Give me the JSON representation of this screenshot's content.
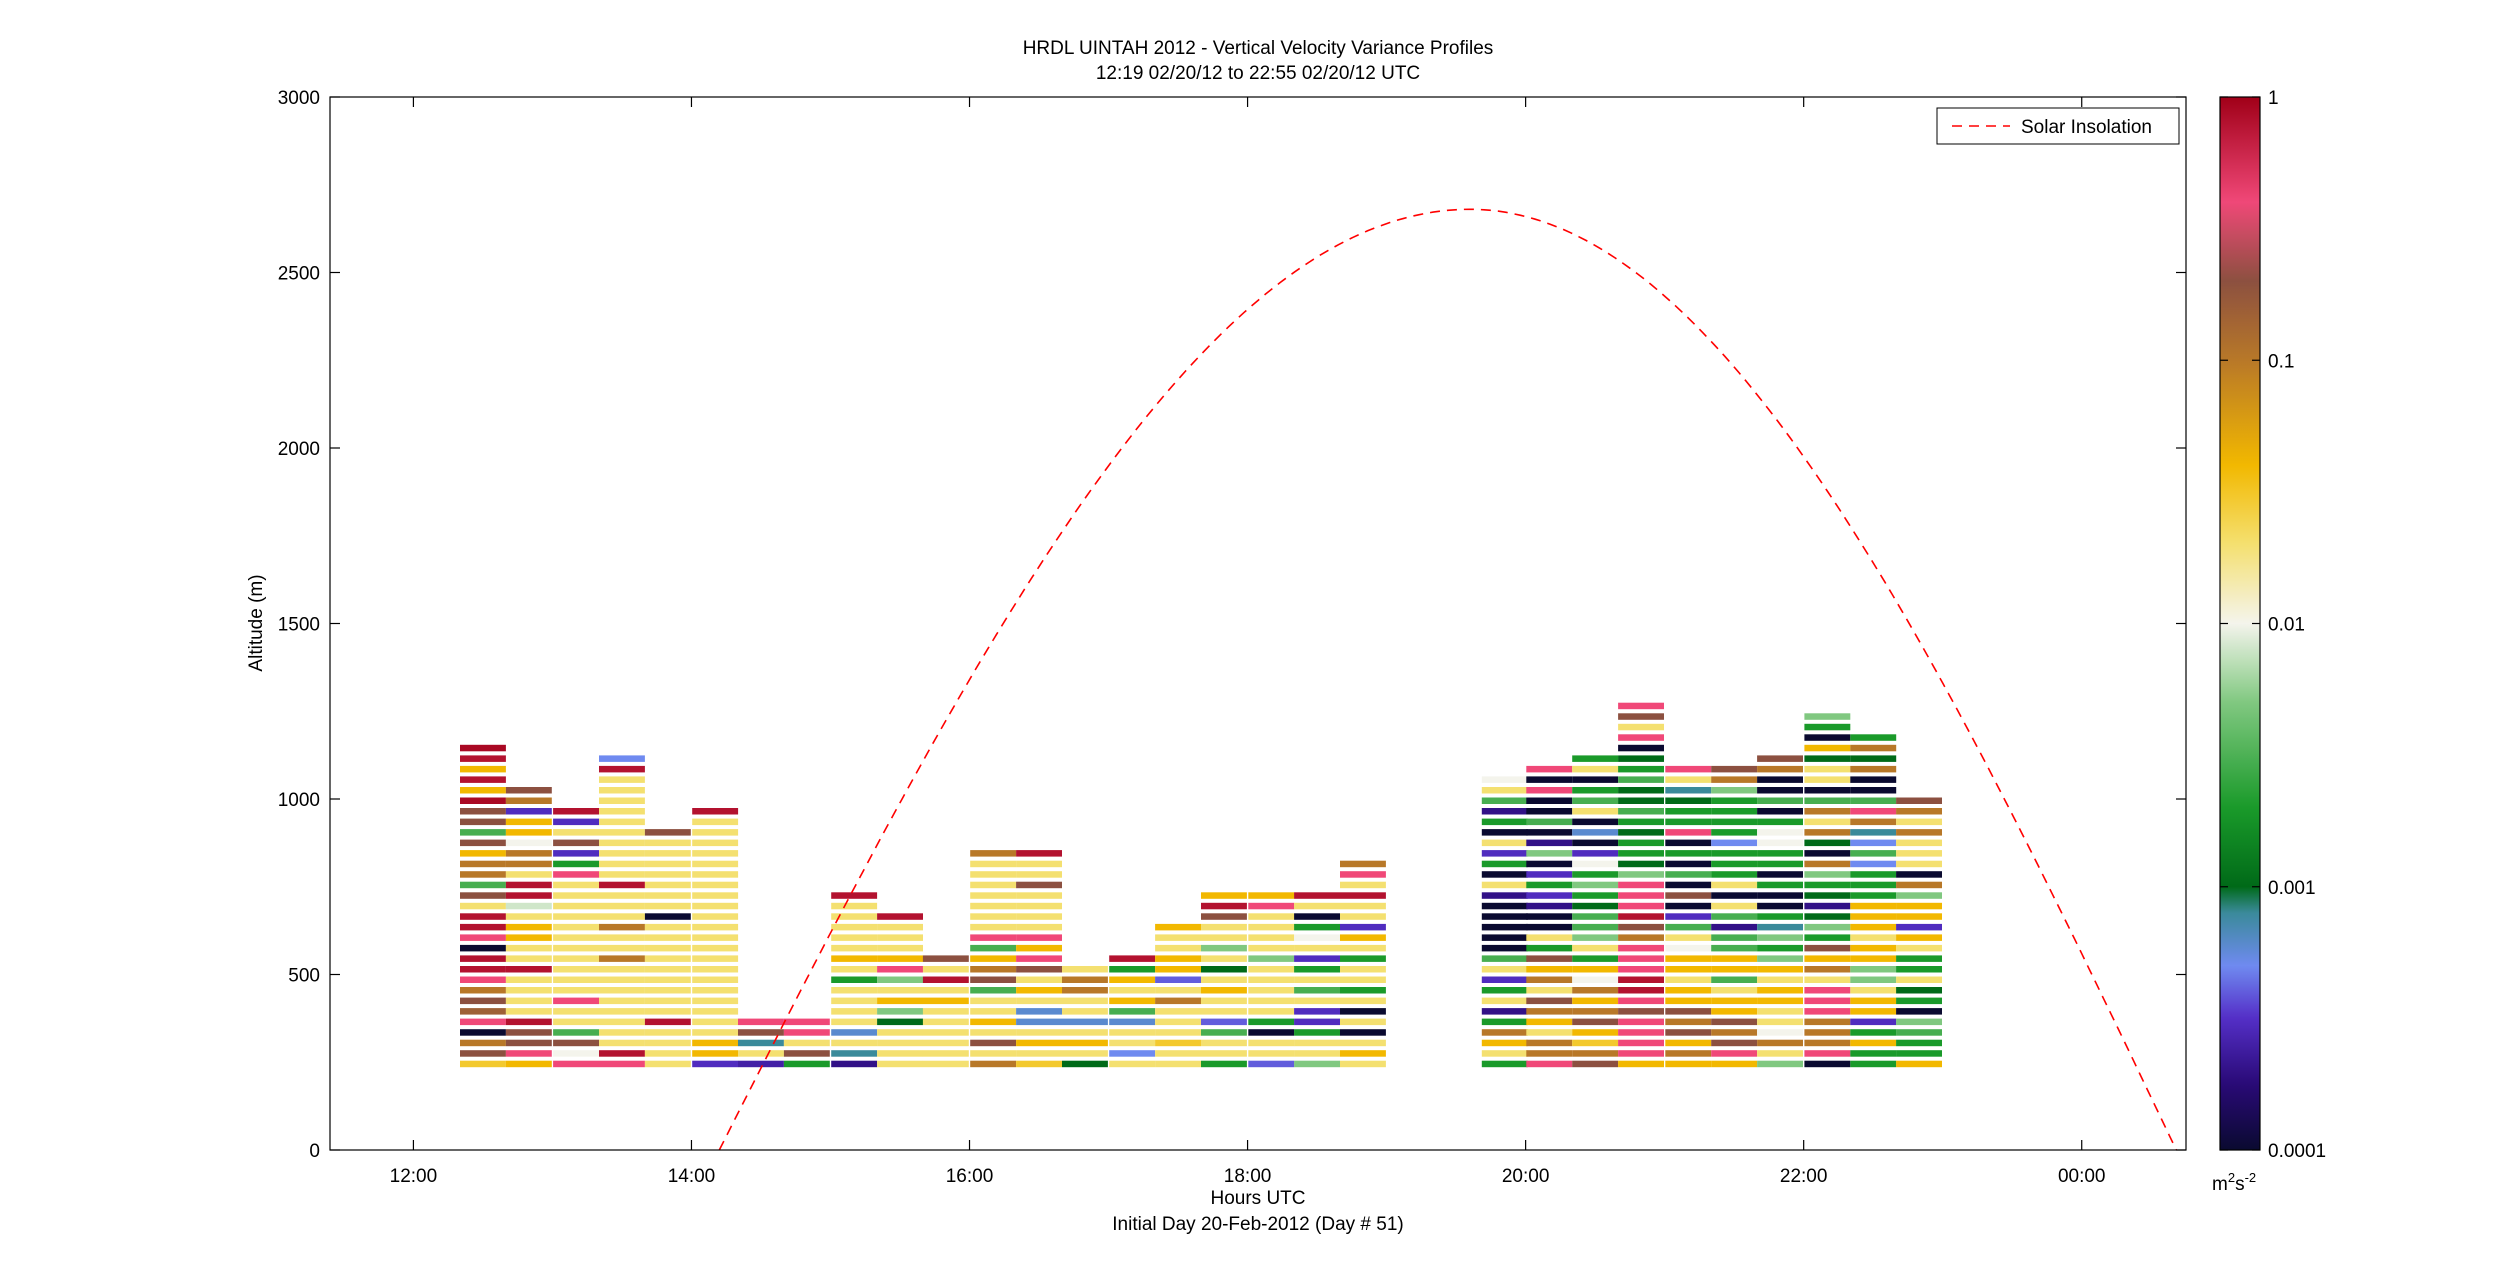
{
  "chart_data": {
    "type": "heatmap",
    "title": "HRDL UINTAH 2012 - Vertical Velocity Variance Profiles",
    "subtitle": "12:19 02/20/12 to 22:55 02/20/12  UTC",
    "xlabel": "Hours UTC",
    "xlabel_secondary": "Initial Day 20-Feb-2012 (Day # 51)",
    "ylabel": "Altitude (m)",
    "xlim_hours": [
      11.4,
      24.75
    ],
    "ylim": [
      0,
      3000
    ],
    "x_ticks": [
      {
        "value": 12,
        "label": "12:00"
      },
      {
        "value": 14,
        "label": "14:00"
      },
      {
        "value": 16,
        "label": "16:00"
      },
      {
        "value": 18,
        "label": "18:00"
      },
      {
        "value": 20,
        "label": "20:00"
      },
      {
        "value": 22,
        "label": "22:00"
      },
      {
        "value": 24,
        "label": "00:00"
      }
    ],
    "y_ticks": [
      {
        "value": 0,
        "label": "0"
      },
      {
        "value": 500,
        "label": "500"
      },
      {
        "value": 1000,
        "label": "1000"
      },
      {
        "value": 1500,
        "label": "1500"
      },
      {
        "value": 2000,
        "label": "2000"
      },
      {
        "value": 2500,
        "label": "2500"
      },
      {
        "value": 3000,
        "label": "3000"
      }
    ],
    "legend": {
      "placement": "top-right",
      "entries": [
        {
          "label": "Solar Insolation",
          "color": "#ff0000",
          "style": "dashed"
        }
      ]
    },
    "colorbar": {
      "scale": "log",
      "range": [
        0.0001,
        1
      ],
      "unit_base": "m",
      "unit_exp1": "2",
      "unit_mid": "s",
      "unit_exp2": "-2",
      "ticks": [
        {
          "value": 1,
          "label": "1"
        },
        {
          "value": 0.1,
          "label": "0.1"
        },
        {
          "value": 0.01,
          "label": "0.01"
        },
        {
          "value": 0.001,
          "label": "0.001"
        },
        {
          "value": 0.0001,
          "label": "0.0001"
        }
      ],
      "stops": [
        {
          "value": 0.0001,
          "color": "#0a0a30"
        },
        {
          "value": 0.00018,
          "color": "#2a0a78"
        },
        {
          "value": 0.00032,
          "color": "#5530c8"
        },
        {
          "value": 0.0005,
          "color": "#6f8af0"
        },
        {
          "value": 0.0008,
          "color": "#3a8a9a"
        },
        {
          "value": 0.001,
          "color": "#006a18"
        },
        {
          "value": 0.002,
          "color": "#1a9a2a"
        },
        {
          "value": 0.005,
          "color": "#80c880"
        },
        {
          "value": 0.01,
          "color": "#f4f4ec"
        },
        {
          "value": 0.02,
          "color": "#f4e070"
        },
        {
          "value": 0.04,
          "color": "#f2b800"
        },
        {
          "value": 0.1,
          "color": "#b87828"
        },
        {
          "value": 0.2,
          "color": "#8c5040"
        },
        {
          "value": 0.4,
          "color": "#f04878"
        },
        {
          "value": 1,
          "color": "#a00018"
        }
      ]
    },
    "solar_insolation": {
      "start_hour": 14.2,
      "peak_hour": 19.6,
      "end_hour": 24.68,
      "peak_altitude": 2680
    },
    "range_gate_m": 30,
    "profiles": [
      {
        "hour": 12.5,
        "start_alt": 245,
        "values": [
          0.03,
          0.2,
          0.1,
          0.0001,
          0.4,
          0.15,
          0.2,
          0.1,
          0.4,
          0.8,
          0.8,
          0.0001,
          0.4,
          0.8,
          0.8,
          0.02,
          0.2,
          0.003,
          0.1,
          0.1,
          0.04,
          0.2,
          0.003,
          0.2,
          0.2,
          0.9,
          0.04,
          0.8,
          0.04,
          0.8,
          0.9
        ]
      },
      {
        "hour": 12.83,
        "start_alt": 245,
        "values": [
          0.04,
          0.4,
          0.2,
          0.2,
          0.8,
          0.02,
          0.02,
          0.02,
          0.02,
          0.8,
          0.02,
          0.02,
          0.04,
          0.04,
          0.02,
          0.008,
          0.8,
          0.8,
          0.02,
          0.1,
          0.1,
          0.01,
          0.04,
          0.04,
          0.0003,
          0.1,
          0.2
        ]
      },
      {
        "hour": 13.17,
        "start_alt": 245,
        "values": [
          0.4,
          0.01,
          0.2,
          0.003,
          0.02,
          0.02,
          0.4,
          0.02,
          0.02,
          0.02,
          0.02,
          0.02,
          0.02,
          0.02,
          0.02,
          0.02,
          0.02,
          0.02,
          0.4,
          0.002,
          0.0003,
          0.2,
          0.02,
          0.0003,
          0.8
        ]
      },
      {
        "hour": 13.5,
        "start_alt": 245,
        "values": [
          0.4,
          0.8,
          0.02,
          0.02,
          0.02,
          0.02,
          0.02,
          0.02,
          0.02,
          0.02,
          0.1,
          0.02,
          0.02,
          0.1,
          0.02,
          0.02,
          0.02,
          0.8,
          0.02,
          0.02,
          0.02,
          0.02,
          0.02,
          0.02,
          0.02,
          0.02,
          0.02,
          0.02,
          0.8,
          0.0005
        ]
      },
      {
        "hour": 13.83,
        "start_alt": 245,
        "values": [
          0.02,
          0.02,
          0.02,
          0.02,
          0.8,
          0.02,
          0.02,
          0.02,
          0.02,
          0.02,
          0.02,
          0.02,
          0.02,
          0.02,
          0.0001,
          0.02,
          0.02,
          0.02,
          0.02,
          0.02,
          0.02,
          0.02,
          0.2
        ]
      },
      {
        "hour": 14.17,
        "start_alt": 245,
        "values": [
          0.0003,
          0.04,
          0.04,
          0.02,
          0.02,
          0.02,
          0.02,
          0.02,
          0.02,
          0.02,
          0.02,
          0.02,
          0.02,
          0.02,
          0.02,
          0.02,
          0.02,
          0.02,
          0.02,
          0.02,
          0.02,
          0.02,
          0.02,
          0.02,
          0.8
        ]
      },
      {
        "hour": 14.5,
        "start_alt": 245,
        "values": [
          0.00025,
          0.02,
          0.0008,
          0.2,
          0.4
        ]
      },
      {
        "hour": 14.83,
        "start_alt": 245,
        "values": [
          0.002,
          0.2,
          0.02,
          0.4,
          0.4
        ]
      },
      {
        "hour": 15.17,
        "start_alt": 245,
        "values": [
          0.0002,
          0.0008,
          0.02,
          0.0006,
          0.02,
          0.02,
          0.02,
          0.02,
          0.002,
          0.02,
          0.04,
          0.02,
          0.02,
          0.02,
          0.02,
          0.02,
          0.8
        ]
      },
      {
        "hour": 15.5,
        "start_alt": 245,
        "values": [
          0.02,
          0.02,
          0.02,
          0.02,
          0.001,
          0.005,
          0.04,
          0.02,
          0.005,
          0.4,
          0.04,
          0.02,
          0.02,
          0.02,
          0.8
        ]
      },
      {
        "hour": 15.83,
        "start_alt": 245,
        "values": [
          0.02,
          0.02,
          0.02,
          0.02,
          0.02,
          0.02,
          0.04,
          0.02,
          0.8,
          0.02,
          0.2
        ]
      },
      {
        "hour": 16.17,
        "start_alt": 245,
        "values": [
          0.1,
          0.02,
          0.2,
          0.02,
          0.04,
          0.02,
          0.02,
          0.003,
          0.2,
          0.1,
          0.04,
          0.003,
          0.4,
          0.02,
          0.02,
          0.02,
          0.02,
          0.02,
          0.02,
          0.02,
          0.1
        ]
      },
      {
        "hour": 16.5,
        "start_alt": 245,
        "values": [
          0.03,
          0.02,
          0.04,
          0.02,
          0.0006,
          0.0006,
          0.02,
          0.04,
          0.02,
          0.2,
          0.4,
          0.04,
          0.4,
          0.02,
          0.02,
          0.02,
          0.02,
          0.2,
          0.02,
          0.02,
          0.8
        ]
      },
      {
        "hour": 16.83,
        "start_alt": 245,
        "values": [
          0.001,
          0.02,
          0.04,
          0.02,
          0.0006,
          0.02,
          0.02,
          0.1,
          0.1,
          0.02
        ]
      },
      {
        "hour": 17.17,
        "start_alt": 245,
        "values": [
          0.02,
          0.0005,
          0.02,
          0.02,
          0.0006,
          0.003,
          0.04,
          0.02,
          0.04,
          0.002,
          0.8
        ]
      },
      {
        "hour": 17.5,
        "start_alt": 245,
        "values": [
          0.02,
          0.02,
          0.03,
          0.02,
          0.02,
          0.02,
          0.1,
          0.02,
          0.0004,
          0.04,
          0.04,
          0.02,
          0.02,
          0.04
        ]
      },
      {
        "hour": 17.83,
        "start_alt": 245,
        "values": [
          0.002,
          0.02,
          0.02,
          0.003,
          0.0004,
          0.02,
          0.02,
          0.04,
          0.02,
          0.001,
          0.02,
          0.005,
          0.02,
          0.02,
          0.2,
          0.8,
          0.04
        ]
      },
      {
        "hour": 18.17,
        "start_alt": 245,
        "values": [
          0.0004,
          0.02,
          0.02,
          0.0001,
          0.002,
          0.02,
          0.02,
          0.02,
          0.02,
          0.02,
          0.005,
          0.02,
          0.02,
          0.02,
          0.02,
          0.4,
          0.04
        ]
      },
      {
        "hour": 18.5,
        "start_alt": 245,
        "values": [
          0.005,
          0.02,
          0.02,
          0.002,
          0.0003,
          0.0003,
          0.02,
          0.003,
          0.02,
          0.002,
          0.0003,
          0.02,
          0.01,
          0.002,
          0.0001,
          0.02,
          0.8
        ]
      },
      {
        "hour": 18.83,
        "start_alt": 245,
        "values": [
          0.02,
          0.04,
          0.02,
          0.0001,
          0.02,
          0.0001,
          0.02,
          0.002,
          0.02,
          0.02,
          0.002,
          0.02,
          0.04,
          0.0003,
          0.02,
          0.02,
          0.8,
          0.02,
          0.4,
          0.1
        ]
      }
    ],
    "dense_profiles": [
      {
        "hour": 19.85,
        "start_alt": 245,
        "values": [
          0.002,
          0.02,
          0.04,
          0.1,
          0.002,
          0.0002,
          0.02,
          0.002,
          0.0003,
          0.02,
          0.003,
          0.0001,
          0.0001,
          0.0001,
          0.0001,
          0.0001,
          0.0002,
          0.02,
          0.0001,
          0.002,
          0.0003,
          0.02,
          0.0001,
          0.002,
          0.0002,
          0.003,
          0.02,
          0.01
        ]
      },
      {
        "hour": 20.17,
        "start_alt": 245,
        "values": [
          0.4,
          0.1,
          0.1,
          0.02,
          0.04,
          0.1,
          0.2,
          0.02,
          0.1,
          0.04,
          0.2,
          0.002,
          0.02,
          0.0001,
          0.0001,
          0.0002,
          0.0003,
          0.002,
          0.0003,
          0.0001,
          0.005,
          0.0002,
          0.0001,
          0.003,
          0.0001,
          0.0001,
          0.4,
          0.0001,
          0.4
        ]
      },
      {
        "hour": 20.5,
        "start_alt": 245,
        "values": [
          0.2,
          0.1,
          0.03,
          0.04,
          0.2,
          0.1,
          0.04,
          0.1,
          0.01,
          0.04,
          0.002,
          0.02,
          0.005,
          0.003,
          0.003,
          0.001,
          0.002,
          0.005,
          0.002,
          0.01,
          0.0003,
          0.0001,
          0.0006,
          0.0001,
          0.02,
          0.003,
          0.002,
          0.0001,
          0.02,
          0.002
        ]
      },
      {
        "hour": 20.83,
        "start_alt": 245,
        "values": [
          0.04,
          0.4,
          0.4,
          0.4,
          0.4,
          0.2,
          0.4,
          0.8,
          0.8,
          0.4,
          0.4,
          0.4,
          0.1,
          0.2,
          0.8,
          0.4,
          0.4,
          0.4,
          0.005,
          0.001,
          0.002,
          0.002,
          0.001,
          0.002,
          0.003,
          0.001,
          0.001,
          0.003,
          0.002,
          0.001,
          0.0001,
          0.4,
          0.02,
          0.2,
          0.4
        ]
      },
      {
        "hour": 21.17,
        "start_alt": 245,
        "values": [
          0.04,
          0.1,
          0.04,
          0.2,
          0.1,
          0.2,
          0.04,
          0.04,
          0.02,
          0.04,
          0.04,
          0.01,
          0.02,
          0.003,
          0.0003,
          0.0001,
          0.2,
          0.0001,
          0.003,
          0.0001,
          0.002,
          0.0001,
          0.4,
          0.002,
          0.002,
          0.001,
          0.0008,
          0.02,
          0.4
        ]
      },
      {
        "hour": 21.5,
        "start_alt": 245,
        "values": [
          0.04,
          0.4,
          0.2,
          0.1,
          0.2,
          0.04,
          0.04,
          0.02,
          0.003,
          0.04,
          0.04,
          0.003,
          0.003,
          0.0002,
          0.003,
          0.02,
          0.0001,
          0.02,
          0.002,
          0.002,
          0.002,
          0.0005,
          0.002,
          0.002,
          0.002,
          0.002,
          0.005,
          0.1,
          0.2
        ]
      },
      {
        "hour": 21.83,
        "start_alt": 245,
        "values": [
          0.005,
          0.02,
          0.1,
          0.01,
          0.02,
          0.02,
          0.04,
          0.04,
          0.02,
          0.04,
          0.005,
          0.002,
          0.005,
          0.0008,
          0.002,
          0.0001,
          0.0001,
          0.002,
          0.0001,
          0.002,
          0.002,
          0.01,
          0.01,
          0.002,
          0.0001,
          0.003,
          0.0001,
          0.0001,
          0.1,
          0.2
        ]
      },
      {
        "hour": 22.17,
        "start_alt": 245,
        "values": [
          0.0001,
          0.4,
          0.1,
          0.1,
          0.1,
          0.4,
          0.4,
          0.4,
          0.02,
          0.1,
          0.04,
          0.2,
          0.002,
          0.005,
          0.001,
          0.0002,
          0.001,
          0.002,
          0.005,
          0.1,
          0.0001,
          0.001,
          0.1,
          0.02,
          0.1,
          0.003,
          0.0001,
          0.02,
          0.02,
          0.001,
          0.04,
          0.0001,
          0.002,
          0.005
        ]
      },
      {
        "hour": 22.5,
        "start_alt": 245,
        "values": [
          0.002,
          0.002,
          0.04,
          0.002,
          0.0003,
          0.04,
          0.04,
          0.02,
          0.005,
          0.005,
          0.04,
          0.04,
          0.02,
          0.04,
          0.04,
          0.04,
          0.002,
          0.002,
          0.002,
          0.0005,
          0.003,
          0.0005,
          0.0008,
          0.1,
          0.4,
          0.003,
          0.0001,
          0.0001,
          0.1,
          0.001,
          0.1,
          0.002
        ]
      },
      {
        "hour": 22.83,
        "start_alt": 245,
        "values": [
          0.04,
          0.002,
          0.002,
          0.003,
          0.005,
          0.0001,
          0.002,
          0.001,
          0.02,
          0.002,
          0.002,
          0.02,
          0.04,
          0.0003,
          0.04,
          0.04,
          0.005,
          0.1,
          0.0001,
          0.02,
          0.02,
          0.02,
          0.1,
          0.02,
          0.1,
          0.2
        ]
      }
    ]
  }
}
